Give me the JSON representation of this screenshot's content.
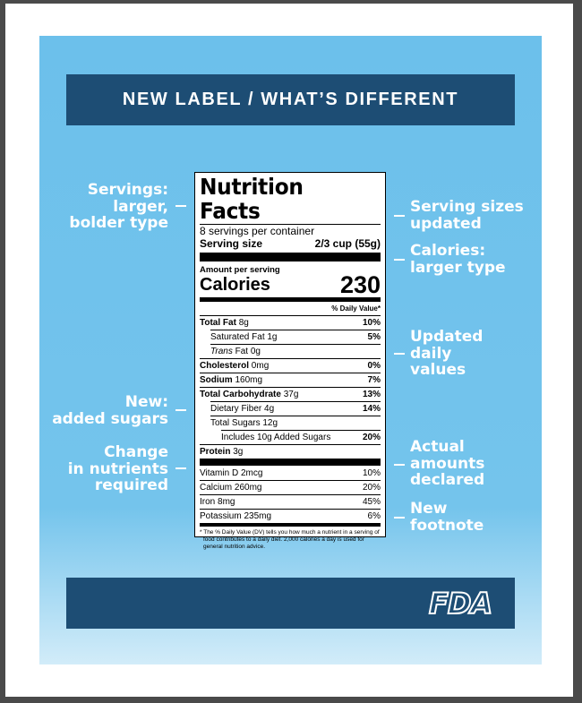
{
  "header": {
    "title": "NEW LABEL / WHAT’S DIFFERENT"
  },
  "annotations": {
    "left": [
      {
        "lines": [
          "Servings:",
          "larger,",
          "bolder type"
        ]
      },
      {
        "lines": [
          "New:",
          "added sugars"
        ]
      },
      {
        "lines": [
          "Change",
          "in nutrients",
          "required"
        ]
      }
    ],
    "right": [
      {
        "lines": [
          "Serving sizes",
          "updated"
        ]
      },
      {
        "lines": [
          "Calories:",
          "larger type"
        ]
      },
      {
        "lines": [
          "Updated",
          "daily",
          "values"
        ]
      },
      {
        "lines": [
          "Actual",
          "amounts",
          "declared"
        ]
      },
      {
        "lines": [
          "New",
          "footnote"
        ]
      }
    ]
  },
  "label": {
    "title": "Nutrition Facts",
    "servings_per_container": "8 servings per container",
    "serving_size_label": "Serving size",
    "serving_size_value": "2/3 cup (55g)",
    "amount_per_serving": "Amount per serving",
    "calories_label": "Calories",
    "calories_value": "230",
    "daily_value_header": "% Daily Value*",
    "nutrients": [
      {
        "name": "Total Fat",
        "amount": "8g",
        "dv": "10%",
        "subrows": [
          {
            "name": "Saturated Fat",
            "amount": "1g",
            "dv": "5%"
          },
          {
            "name_italic": "Trans",
            "name": "Fat",
            "amount": "0g"
          }
        ]
      },
      {
        "name": "Cholesterol",
        "amount": "0mg",
        "dv": "0%"
      },
      {
        "name": "Sodium",
        "amount": "160mg",
        "dv": "7%"
      },
      {
        "name": "Total Carbohydrate",
        "amount": "37g",
        "dv": "13%",
        "subrows": [
          {
            "name": "Dietary Fiber",
            "amount": "4g",
            "dv": "14%"
          },
          {
            "name": "Total Sugars",
            "amount": "12g",
            "subrows": [
              {
                "name": "Includes 10g Added Sugars",
                "dv": "20%"
              }
            ]
          }
        ]
      },
      {
        "name": "Protein",
        "amount": "3g"
      }
    ],
    "vitamins": [
      {
        "name": "Vitamin D",
        "amount": "2mcg",
        "dv": "10%"
      },
      {
        "name": "Calcium",
        "amount": "260mg",
        "dv": "20%"
      },
      {
        "name": "Iron",
        "amount": "8mg",
        "dv": "45%"
      },
      {
        "name": "Potassium",
        "amount": "235mg",
        "dv": "6%"
      }
    ],
    "footnote": "* The % Daily Value (DV) tells you how much a nutrient in a serving of food contributes to a daily diet. 2,000 calories a day is used for general nutrition advice."
  },
  "footer": {
    "logo": "FDA"
  }
}
